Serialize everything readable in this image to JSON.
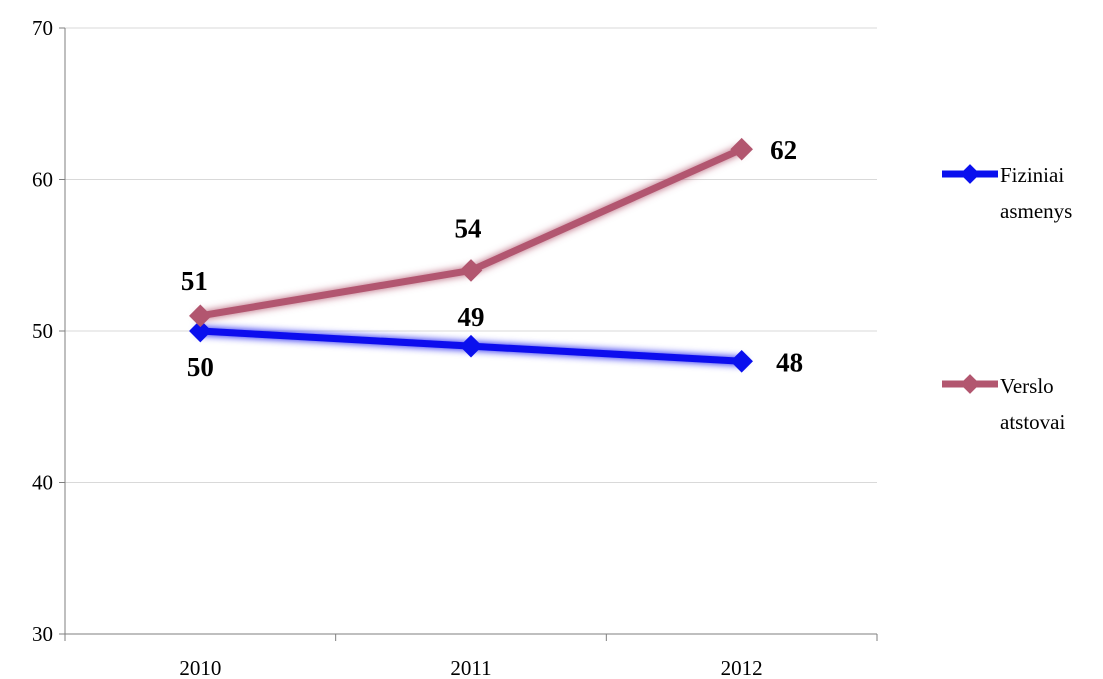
{
  "chart_data": {
    "type": "line",
    "categories": [
      "2010",
      "2011",
      "2012"
    ],
    "series": [
      {
        "name": "Fiziniai asmenys",
        "legend_lines": [
          "Fiziniai",
          "asmenys"
        ],
        "values": [
          50,
          49,
          48
        ],
        "labels": [
          "50",
          "49",
          "48"
        ],
        "color": "#0a10ee"
      },
      {
        "name": "Verslo atstovai",
        "legend_lines": [
          "Verslo",
          "atstovai"
        ],
        "values": [
          51,
          54,
          62
        ],
        "labels": [
          "51",
          "54",
          "62"
        ],
        "color": "#b2566f"
      }
    ],
    "y_ticks": [
      "30",
      "40",
      "50",
      "60",
      "70"
    ],
    "ylim": [
      30,
      70
    ],
    "grid": true,
    "legend_position": "right",
    "title": "",
    "xlabel": "",
    "ylabel": ""
  }
}
